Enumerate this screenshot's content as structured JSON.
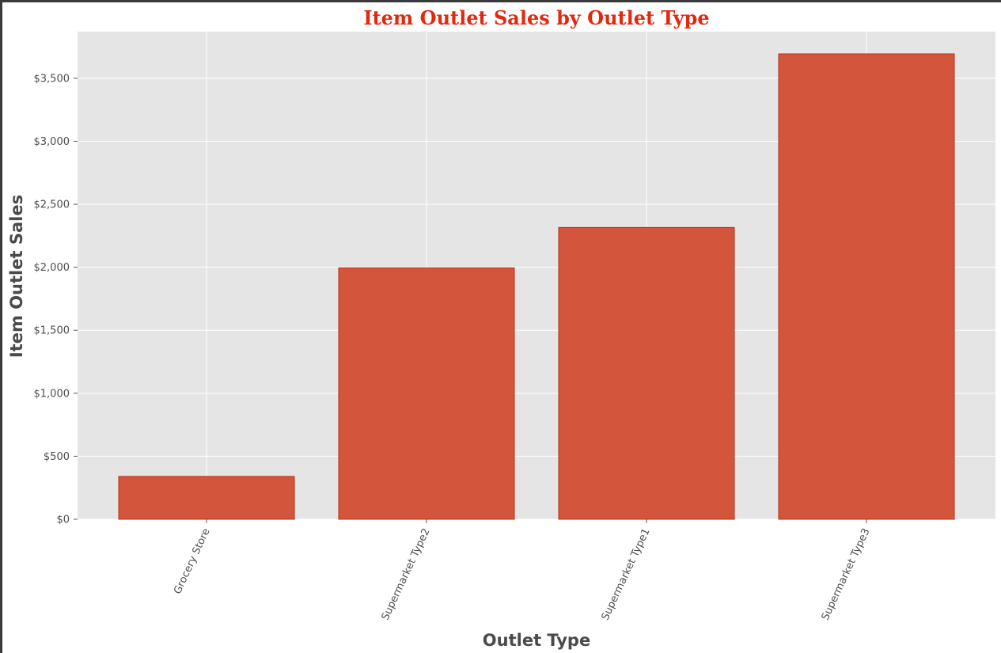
{
  "chart_data": {
    "type": "bar",
    "title": "Item Outlet Sales by Outlet Type",
    "xlabel": "Outlet Type",
    "ylabel": "Item Outlet Sales",
    "categories": [
      "Grocery Store",
      "Supermarket Type2",
      "Supermarket Type1",
      "Supermarket Type3"
    ],
    "values": [
      340,
      1995,
      2316,
      3694
    ],
    "ylim": [
      0,
      3870
    ],
    "yticks": [
      0,
      500,
      1000,
      1500,
      2000,
      2500,
      3000,
      3500
    ],
    "ytick_labels": [
      "$0",
      "$500",
      "$1,000",
      "$1,500",
      "$2,000",
      "$2,500",
      "$3,000",
      "$3,500"
    ],
    "grid": true,
    "colors": {
      "bar": "#d2553c",
      "bar_edge": "#b8321a",
      "plot_background": "#e5e5e5",
      "grid": "#ffffff",
      "title": "#e2290f"
    }
  }
}
